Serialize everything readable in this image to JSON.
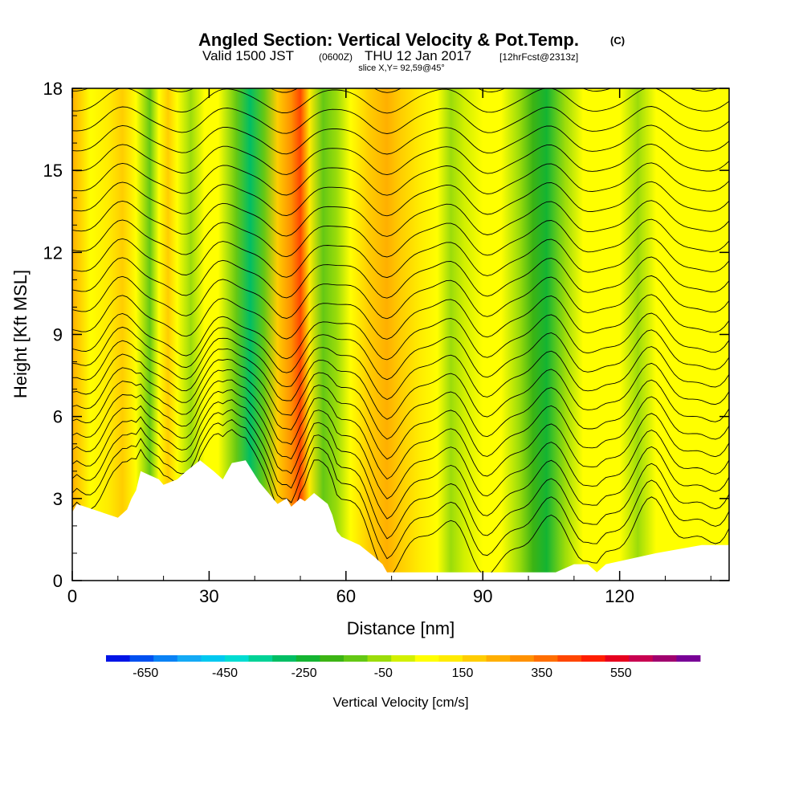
{
  "chart_data": {
    "type": "heatmap",
    "title": "Angled Section: Vertical Velocity & Pot.Temp.",
    "title_unit": "(C)",
    "subtitle_main": "Valid 1500 JST",
    "subtitle_utc": "(0600Z)",
    "subtitle_date": "THU 12 Jan 2017",
    "subtitle_fcst": "[12hrFcst@2313z]",
    "slice_label": "slice X,Y= 92,59@45°",
    "xlabel": "Distance [nm]",
    "ylabel": "Height [Kft MSL]",
    "xlim": [
      0,
      144
    ],
    "ylim": [
      0,
      18
    ],
    "x_ticks": [
      "0",
      "30",
      "60",
      "90",
      "120"
    ],
    "y_ticks": [
      "0",
      "3",
      "6",
      "9",
      "12",
      "15",
      "18"
    ],
    "colorbar_label": "Vertical Velocity [cm/s]",
    "colorbar_ticks": [
      "-650",
      "-450",
      "-250",
      "-50",
      "150",
      "350",
      "550"
    ],
    "colorbar_range": [
      -750,
      750
    ],
    "colorbar_colors": [
      "#0014e6",
      "#0050f0",
      "#0a82f5",
      "#14aaf5",
      "#00c8f0",
      "#00dcd2",
      "#00d296",
      "#00be64",
      "#14b432",
      "#3cb414",
      "#64c814",
      "#9bdc0a",
      "#d2f000",
      "#ffff00",
      "#ffeb00",
      "#ffcd00",
      "#ffaf00",
      "#ff9100",
      "#ff6e00",
      "#ff4600",
      "#ff1e00",
      "#e6001e",
      "#c80050",
      "#a0006e",
      "#780096"
    ],
    "grid": false,
    "vertical_velocity_bands_cm_s": [
      {
        "x": 0,
        "w": 250
      },
      {
        "x": 4,
        "w": 50
      },
      {
        "x": 8,
        "w": 100
      },
      {
        "x": 11,
        "w": 200
      },
      {
        "x": 14,
        "w": 80
      },
      {
        "x": 17,
        "w": -100
      },
      {
        "x": 19,
        "w": 50
      },
      {
        "x": 21,
        "w": 200
      },
      {
        "x": 23,
        "w": 80
      },
      {
        "x": 26,
        "w": -80
      },
      {
        "x": 29,
        "w": 50
      },
      {
        "x": 32,
        "w": 40
      },
      {
        "x": 36,
        "w": -150
      },
      {
        "x": 39,
        "w": -300
      },
      {
        "x": 42,
        "w": -120
      },
      {
        "x": 45,
        "w": 150
      },
      {
        "x": 48,
        "w": 300
      },
      {
        "x": 50,
        "w": 400
      },
      {
        "x": 52,
        "w": 100
      },
      {
        "x": 55,
        "w": -150
      },
      {
        "x": 58,
        "w": -50
      },
      {
        "x": 61,
        "w": 80
      },
      {
        "x": 65,
        "w": 200
      },
      {
        "x": 69,
        "w": 250
      },
      {
        "x": 72,
        "w": 180
      },
      {
        "x": 76,
        "w": 100
      },
      {
        "x": 80,
        "w": 60
      },
      {
        "x": 83,
        "w": -80
      },
      {
        "x": 86,
        "w": -30
      },
      {
        "x": 90,
        "w": 60
      },
      {
        "x": 94,
        "w": 40
      },
      {
        "x": 98,
        "w": -80
      },
      {
        "x": 101,
        "w": -180
      },
      {
        "x": 104,
        "w": -250
      },
      {
        "x": 108,
        "w": -80
      },
      {
        "x": 112,
        "w": 40
      },
      {
        "x": 116,
        "w": 60
      },
      {
        "x": 120,
        "w": 40
      },
      {
        "x": 124,
        "w": -40
      },
      {
        "x": 128,
        "w": 50
      },
      {
        "x": 132,
        "w": 60
      },
      {
        "x": 136,
        "w": 40
      },
      {
        "x": 140,
        "w": 50
      },
      {
        "x": 144,
        "w": 40
      }
    ],
    "terrain_kft": [
      {
        "x": 0,
        "h": 2.5
      },
      {
        "x": 1,
        "h": 2.8
      },
      {
        "x": 10,
        "h": 2.3
      },
      {
        "x": 12,
        "h": 2.6
      },
      {
        "x": 13,
        "h": 3.0
      },
      {
        "x": 14,
        "h": 3.3
      },
      {
        "x": 15,
        "h": 4.0
      },
      {
        "x": 19,
        "h": 3.7
      },
      {
        "x": 20,
        "h": 3.5
      },
      {
        "x": 23,
        "h": 3.7
      },
      {
        "x": 25,
        "h": 4.0
      },
      {
        "x": 28,
        "h": 4.4
      },
      {
        "x": 31,
        "h": 4.0
      },
      {
        "x": 33,
        "h": 3.7
      },
      {
        "x": 35,
        "h": 4.3
      },
      {
        "x": 38,
        "h": 4.4
      },
      {
        "x": 41,
        "h": 3.6
      },
      {
        "x": 43,
        "h": 3.2
      },
      {
        "x": 45,
        "h": 2.8
      },
      {
        "x": 47,
        "h": 3.0
      },
      {
        "x": 48,
        "h": 2.7
      },
      {
        "x": 50,
        "h": 3.0
      },
      {
        "x": 51,
        "h": 2.9
      },
      {
        "x": 53,
        "h": 3.2
      },
      {
        "x": 56,
        "h": 2.8
      },
      {
        "x": 57,
        "h": 2.4
      },
      {
        "x": 58,
        "h": 1.8
      },
      {
        "x": 59,
        "h": 1.6
      },
      {
        "x": 63,
        "h": 1.3
      },
      {
        "x": 66,
        "h": 0.9
      },
      {
        "x": 68,
        "h": 0.6
      },
      {
        "x": 69,
        "h": 0.3
      },
      {
        "x": 106,
        "h": 0.3
      },
      {
        "x": 110,
        "h": 0.6
      },
      {
        "x": 113,
        "h": 0.6
      },
      {
        "x": 115,
        "h": 0.3
      },
      {
        "x": 117,
        "h": 0.6
      },
      {
        "x": 128,
        "h": 1.0
      },
      {
        "x": 138,
        "h": 1.3
      },
      {
        "x": 144,
        "h": 1.3
      }
    ]
  }
}
